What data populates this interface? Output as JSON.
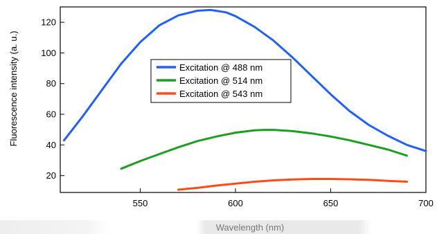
{
  "chart_data": {
    "type": "line",
    "title": "",
    "xlabel": "Wavelength (nm)",
    "ylabel": "Fluorescence intensity (a. u.)",
    "xlim": [
      508,
      700
    ],
    "ylim": [
      9,
      130
    ],
    "x_ticks": [
      550,
      600,
      650,
      700
    ],
    "y_ticks": [
      20,
      40,
      60,
      80,
      100,
      120
    ],
    "grid": false,
    "legend_position": "upper-center",
    "series": [
      {
        "name": "Excitation @ 488 nm",
        "color": "#1f5fff",
        "x": [
          510,
          520,
          530,
          540,
          550,
          560,
          570,
          580,
          587,
          595,
          600,
          610,
          620,
          630,
          640,
          650,
          660,
          670,
          680,
          690,
          700
        ],
        "y": [
          43,
          59,
          76,
          93,
          107,
          118,
          124.5,
          127.5,
          128,
          126.5,
          124,
          117,
          108,
          97,
          85,
          73,
          62,
          53,
          46,
          40,
          36
        ]
      },
      {
        "name": "Excitation @ 514 nm",
        "color": "#19a11d",
        "x": [
          540,
          550,
          560,
          570,
          580,
          590,
          600,
          610,
          615,
          620,
          630,
          640,
          650,
          660,
          670,
          680,
          690
        ],
        "y": [
          24.5,
          29.5,
          34,
          38.5,
          42.5,
          45.5,
          48,
          49.5,
          49.8,
          49.8,
          49,
          47.5,
          45.5,
          43,
          40,
          37,
          33
        ]
      },
      {
        "name": "Excitation @ 543 nm",
        "color": "#ff4a12",
        "x": [
          570,
          580,
          590,
          600,
          610,
          620,
          630,
          640,
          650,
          660,
          670,
          680,
          690
        ],
        "y": [
          10.8,
          12,
          13.5,
          14.8,
          16,
          16.9,
          17.5,
          17.8,
          17.8,
          17.6,
          17.2,
          16.6,
          16
        ]
      }
    ]
  }
}
